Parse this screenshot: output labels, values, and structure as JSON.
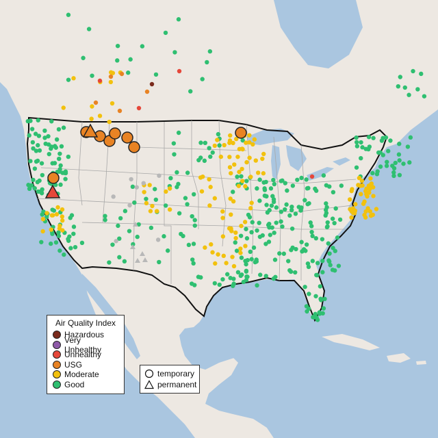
{
  "map": {
    "colors": {
      "ocean": "#aac6e0",
      "land": "#ede8e2",
      "us_land": "#eceae4",
      "border": "#111111",
      "state_line": "#a8a8a8"
    }
  },
  "legend": {
    "title": "Air Quality Index",
    "items": [
      {
        "label": "Hazardous",
        "color": "#7a2a1c"
      },
      {
        "label": "Very Unhealthy",
        "color": "#8e5aa8"
      },
      {
        "label": "Unhealthy",
        "color": "#e5473a"
      },
      {
        "label": "USG",
        "color": "#e88324"
      },
      {
        "label": "Moderate",
        "color": "#f2c10e"
      },
      {
        "label": "Good",
        "color": "#2fbf71"
      }
    ]
  },
  "type_legend": {
    "items": [
      {
        "label": "temporary",
        "shape": "circle"
      },
      {
        "label": "permanent",
        "shape": "triangle"
      }
    ]
  }
}
